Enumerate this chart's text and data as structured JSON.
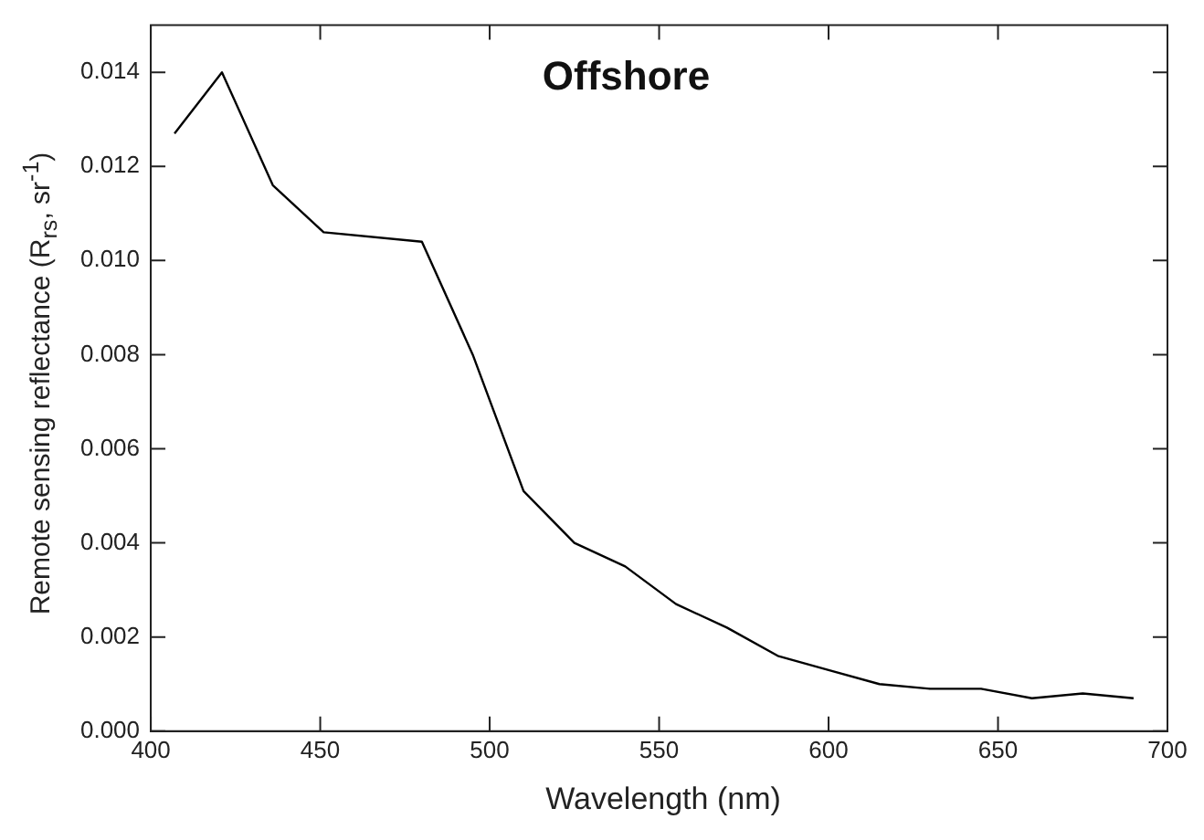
{
  "chart_data": {
    "type": "line",
    "title": "Offshore",
    "xlabel": "Wavelength (nm)",
    "ylabel": "Remote sensing reflectance (R$_{rs}$, sr$^{-1}$)",
    "x": [
      407,
      421,
      436,
      451,
      480,
      495,
      510,
      525,
      540,
      555,
      570,
      585,
      600,
      615,
      630,
      645,
      660,
      675,
      690
    ],
    "series": [
      {
        "color": "#000000",
        "values": [
          0.0127,
          0.014,
          0.0116,
          0.0106,
          0.0104,
          0.008,
          0.0051,
          0.004,
          0.0035,
          0.0027,
          0.0022,
          0.0016,
          0.0013,
          0.001,
          0.0009,
          0.0009,
          0.0007,
          0.0008,
          0.0007
        ]
      }
    ],
    "xlim": [
      400,
      700
    ],
    "xticks": [
      400,
      450,
      500,
      550,
      600,
      650,
      700
    ],
    "ylim": [
      0,
      0.015
    ],
    "yticks": [
      {
        "value": 0,
        "label": "0.000"
      },
      {
        "value": 0.002,
        "label": "0.002"
      },
      {
        "value": 0.004,
        "label": "0.004"
      },
      {
        "value": 0.006,
        "label": "0.006"
      },
      {
        "value": 0.008,
        "label": "0.008"
      },
      {
        "value": 0.01,
        "label": "0.010"
      },
      {
        "value": 0.012,
        "label": "0.012"
      },
      {
        "value": 0.014,
        "label": "0.014"
      }
    ],
    "grid": false,
    "legend": false,
    "marker": "none",
    "line_style": "solid"
  }
}
